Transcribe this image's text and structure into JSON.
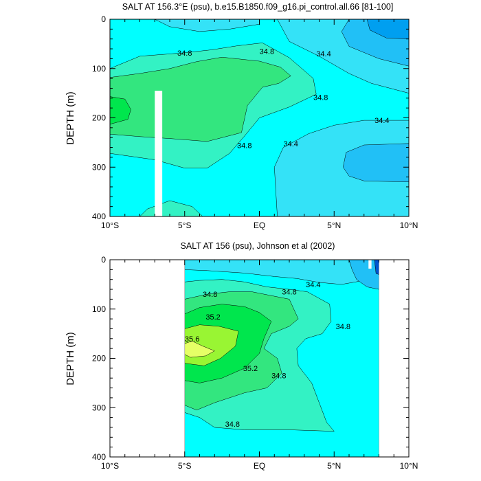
{
  "chart_data": [
    {
      "type": "contour",
      "title": "SALT AT 156.3°E (psu), b.e15.B1850.f09_g16.pi_control.all.66 [81-100]",
      "xlabel": "",
      "ylabel": "DEPTH (m)",
      "xlim": [
        -10,
        10
      ],
      "ylim": [
        400,
        0
      ],
      "x_ticks": [
        {
          "value": -10,
          "label": "10°S"
        },
        {
          "value": -5,
          "label": "5°S"
        },
        {
          "value": 0,
          "label": "EQ"
        },
        {
          "value": 5,
          "label": "5°N"
        },
        {
          "value": 10,
          "label": "10°N"
        }
      ],
      "y_ticks": [
        0,
        100,
        200,
        300,
        400
      ],
      "levels": {
        "34.0": "#009ff0",
        "34.2": "#21c0f6",
        "34.4": "#34e2f7",
        "34.6": "#00ffff",
        "34.8": "#33f2c4",
        "35.0": "#33e67f",
        "35.2": "#00e64d",
        "35.6": "#e6ff66"
      },
      "mask_regions": [
        {
          "x": [
            -7.0,
            -6.5
          ],
          "depth": [
            145,
            400
          ]
        }
      ],
      "regions": [
        {
          "level": "34.6",
          "polygon": [
            [
              -10,
              0
            ],
            [
              10,
              0
            ],
            [
              10,
              400
            ],
            [
              -10,
              400
            ]
          ]
        },
        {
          "level": "34.4",
          "polygon": [
            [
              -10,
              0
            ],
            [
              -7,
              0
            ],
            [
              -6,
              15
            ],
            [
              -4,
              25
            ],
            [
              -2,
              20
            ],
            [
              0,
              10
            ],
            [
              0,
              0
            ]
          ]
        },
        {
          "level": "34.4",
          "polygon": [
            [
              1.2,
              0
            ],
            [
              10,
              0
            ],
            [
              10,
              400
            ],
            [
              1.2,
              400
            ],
            [
              1,
              300
            ],
            [
              1.6,
              260
            ],
            [
              3.3,
              232
            ],
            [
              5,
              215
            ],
            [
              7,
              205
            ],
            [
              10,
              205
            ],
            [
              10,
              150
            ],
            [
              7.5,
              130
            ],
            [
              6,
              110
            ],
            [
              4,
              75
            ],
            [
              2,
              45
            ],
            [
              1.2,
              0
            ]
          ]
        },
        {
          "level": "34.2",
          "polygon": [
            [
              6,
              0
            ],
            [
              10,
              0
            ],
            [
              10,
              95
            ],
            [
              8,
              80
            ],
            [
              6,
              55
            ],
            [
              5.5,
              25
            ]
          ]
        },
        {
          "level": "34.2",
          "polygon": [
            [
              5.6,
              300
            ],
            [
              5.8,
              270
            ],
            [
              7,
              255
            ],
            [
              10,
              252
            ],
            [
              10,
              330
            ],
            [
              7,
              328
            ],
            [
              6,
              318
            ]
          ]
        },
        {
          "level": "34.0",
          "polygon": [
            [
              7.2,
              0
            ],
            [
              10,
              0
            ],
            [
              10,
              40
            ],
            [
              8.5,
              38
            ],
            [
              7.4,
              22
            ]
          ]
        },
        {
          "level": "34.8",
          "polygon": [
            [
              -10,
              100
            ],
            [
              -8,
              75
            ],
            [
              -5,
              68
            ],
            [
              -3.2,
              62
            ],
            [
              -1.5,
              54
            ],
            [
              0.2,
              48
            ],
            [
              2,
              78
            ],
            [
              3.6,
              120
            ],
            [
              3.8,
              152
            ],
            [
              2,
              178
            ],
            [
              0,
              200
            ],
            [
              -1,
              237
            ],
            [
              -2,
              272
            ],
            [
              -3.5,
              302
            ],
            [
              -5,
              302
            ],
            [
              -7,
              285
            ],
            [
              -10,
              272
            ]
          ]
        },
        {
          "level": "34.8",
          "polygon": [
            [
              -8,
              400
            ],
            [
              -7.5,
              385
            ],
            [
              -6,
              368
            ],
            [
              -4.5,
              380
            ],
            [
              -3.8,
              400
            ]
          ]
        },
        {
          "level": "35.0",
          "polygon": [
            [
              -10,
              118
            ],
            [
              -8,
              110
            ],
            [
              -6,
              100
            ],
            [
              -4.2,
              86
            ],
            [
              -2.5,
              77
            ],
            [
              0,
              85
            ],
            [
              1.4,
              97
            ],
            [
              2.1,
              115
            ],
            [
              1.3,
              130
            ],
            [
              0.2,
              138
            ],
            [
              -0.8,
              175
            ],
            [
              -1.2,
              230
            ],
            [
              -3.5,
              248
            ],
            [
              -6,
              242
            ],
            [
              -8,
              238
            ],
            [
              -10,
              233
            ]
          ]
        },
        {
          "level": "35.2",
          "polygon": [
            [
              -10,
              157
            ],
            [
              -9,
              162
            ],
            [
              -8.6,
              183
            ],
            [
              -8.8,
              203
            ],
            [
              -10,
              213
            ]
          ]
        }
      ],
      "contour_labels": [
        {
          "text": "34.8",
          "x": -5.0,
          "depth": 68
        },
        {
          "text": "34.8",
          "x": 0.5,
          "depth": 65
        },
        {
          "text": "34.4",
          "x": 4.3,
          "depth": 70
        },
        {
          "text": "34.8",
          "x": 4.1,
          "depth": 158
        },
        {
          "text": "34.4",
          "x": 8.2,
          "depth": 205
        },
        {
          "text": "34.8",
          "x": -1.0,
          "depth": 256
        },
        {
          "text": "34.4",
          "x": 2.1,
          "depth": 252
        }
      ]
    },
    {
      "type": "contour",
      "title": "SALT AT 156 (psu), Johnson et al (2002)",
      "xlabel": "",
      "ylabel": "DEPTH (m)",
      "xlim": [
        -10,
        10
      ],
      "ylim": [
        400,
        0
      ],
      "x_ticks": [
        {
          "value": -10,
          "label": "10°S"
        },
        {
          "value": -5,
          "label": "5°S"
        },
        {
          "value": 0,
          "label": "EQ"
        },
        {
          "value": 5,
          "label": "5°N"
        },
        {
          "value": 10,
          "label": "10°N"
        }
      ],
      "y_ticks": [
        0,
        100,
        200,
        300,
        400
      ],
      "levels": {
        "33.8": "#0055d0",
        "34.2": "#21c0f6",
        "34.4": "#34e2f7",
        "34.6": "#00ffff",
        "34.8": "#33f2c4",
        "35.0": "#33e67f",
        "35.2": "#00e64d",
        "35.4": "#99f533",
        "35.6": "#e6ff66"
      },
      "data_extent": {
        "x": [
          -5,
          8
        ],
        "depth": [
          0,
          400
        ]
      },
      "mask_regions": [
        {
          "x": [
            7.3,
            7.5
          ],
          "depth": [
            0,
            18
          ]
        }
      ],
      "regions": [
        {
          "level": "34.6",
          "polygon": [
            [
              -5,
              0
            ],
            [
              8,
              0
            ],
            [
              8,
              400
            ],
            [
              -5,
              400
            ]
          ]
        },
        {
          "level": "34.4",
          "polygon": [
            [
              -5,
              0
            ],
            [
              8,
              0
            ],
            [
              8,
              35
            ],
            [
              7,
              42
            ],
            [
              5.5,
              50
            ],
            [
              4,
              46
            ],
            [
              2.5,
              38
            ],
            [
              1,
              34
            ],
            [
              -1,
              27
            ],
            [
              -3.5,
              22
            ],
            [
              -5,
              20
            ]
          ]
        },
        {
          "level": "34.2",
          "polygon": [
            [
              6,
              0
            ],
            [
              8,
              0
            ],
            [
              8,
              60
            ],
            [
              7.2,
              55
            ],
            [
              6.5,
              40
            ],
            [
              6.2,
              20
            ]
          ]
        },
        {
          "level": "33.8",
          "polygon": [
            [
              7.7,
              0
            ],
            [
              8,
              0
            ],
            [
              8,
              30
            ],
            [
              7.8,
              28
            ]
          ]
        },
        {
          "level": "34.8",
          "polygon": [
            [
              -5,
              45
            ],
            [
              -4,
              42
            ],
            [
              -2.5,
              40
            ],
            [
              -1,
              45
            ],
            [
              0.5,
              55
            ],
            [
              2,
              60
            ],
            [
              3.2,
              65
            ],
            [
              4.7,
              90
            ],
            [
              4.8,
              125
            ],
            [
              4.2,
              150
            ],
            [
              3.1,
              160
            ],
            [
              2.5,
              180
            ],
            [
              2.6,
              215
            ],
            [
              3.5,
              250
            ],
            [
              4,
              290
            ],
            [
              4.5,
              330
            ],
            [
              5,
              348
            ],
            [
              2,
              345
            ],
            [
              -1,
              345
            ],
            [
              -3,
              340
            ],
            [
              -4,
              320
            ],
            [
              -5,
              310
            ]
          ]
        },
        {
          "level": "35.0",
          "polygon": [
            [
              -5,
              80
            ],
            [
              -3.5,
              70
            ],
            [
              -2,
              65
            ],
            [
              -0.5,
              65
            ],
            [
              2,
              80
            ],
            [
              2.6,
              120
            ],
            [
              2,
              135
            ],
            [
              0.8,
              150
            ],
            [
              0.3,
              180
            ],
            [
              1.2,
              200
            ],
            [
              1.5,
              230
            ],
            [
              0.5,
              260
            ],
            [
              -1,
              270
            ],
            [
              -3,
              290
            ],
            [
              -4.2,
              305
            ],
            [
              -5,
              295
            ]
          ]
        },
        {
          "level": "35.2",
          "polygon": [
            [
              -5,
              110
            ],
            [
              -4,
              97
            ],
            [
              -2.5,
              90
            ],
            [
              -1,
              95
            ],
            [
              0,
              107
            ],
            [
              0.8,
              125
            ],
            [
              0.3,
              160
            ],
            [
              0,
              190
            ],
            [
              -1,
              220
            ],
            [
              -2.5,
              240
            ],
            [
              -4,
              250
            ],
            [
              -5,
              245
            ]
          ]
        },
        {
          "level": "35.4",
          "polygon": [
            [
              -5,
              140
            ],
            [
              -4,
              132
            ],
            [
              -2.7,
              135
            ],
            [
              -1.4,
              145
            ],
            [
              -1.6,
              175
            ],
            [
              -2.6,
              200
            ],
            [
              -3.7,
              215
            ],
            [
              -5,
              210
            ]
          ]
        },
        {
          "level": "35.6",
          "polygon": [
            [
              -5,
              170
            ],
            [
              -4.5,
              165
            ],
            [
              -3.8,
              175
            ],
            [
              -3,
              185
            ],
            [
              -3.6,
              195
            ],
            [
              -4.6,
              198
            ],
            [
              -5,
              192
            ]
          ]
        }
      ],
      "contour_labels": [
        {
          "text": "34.8",
          "x": -3.3,
          "depth": 70
        },
        {
          "text": "34.8",
          "x": 2.0,
          "depth": 65
        },
        {
          "text": "34.4",
          "x": 3.6,
          "depth": 50
        },
        {
          "text": "34.8",
          "x": 5.6,
          "depth": 135
        },
        {
          "text": "35.2",
          "x": -3.1,
          "depth": 116
        },
        {
          "text": "35.6",
          "x": -4.5,
          "depth": 160
        },
        {
          "text": "35.2",
          "x": -0.6,
          "depth": 220
        },
        {
          "text": "34.8",
          "x": 1.3,
          "depth": 235
        },
        {
          "text": "34.8",
          "x": -1.8,
          "depth": 333
        }
      ]
    }
  ]
}
